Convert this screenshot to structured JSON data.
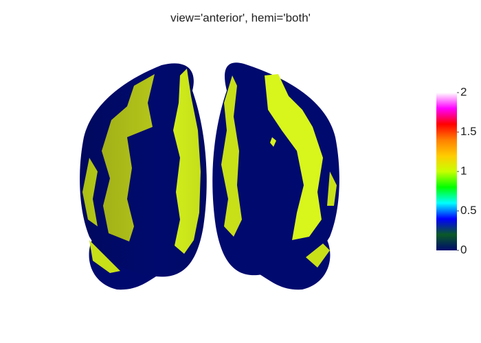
{
  "title": "view='anterior', hemi='both'",
  "colorbar": {
    "range": [
      0,
      2
    ],
    "ticks": [
      0,
      0.5,
      1,
      1.5,
      2
    ],
    "colorscale": [
      "#000a6e",
      "#0a5a28",
      "#0000ff",
      "#00ffff",
      "#00ff00",
      "#c8ff00",
      "#ffcc00",
      "#ff8000",
      "#ff0000",
      "#ff00ff",
      "#ffffff"
    ]
  }
}
